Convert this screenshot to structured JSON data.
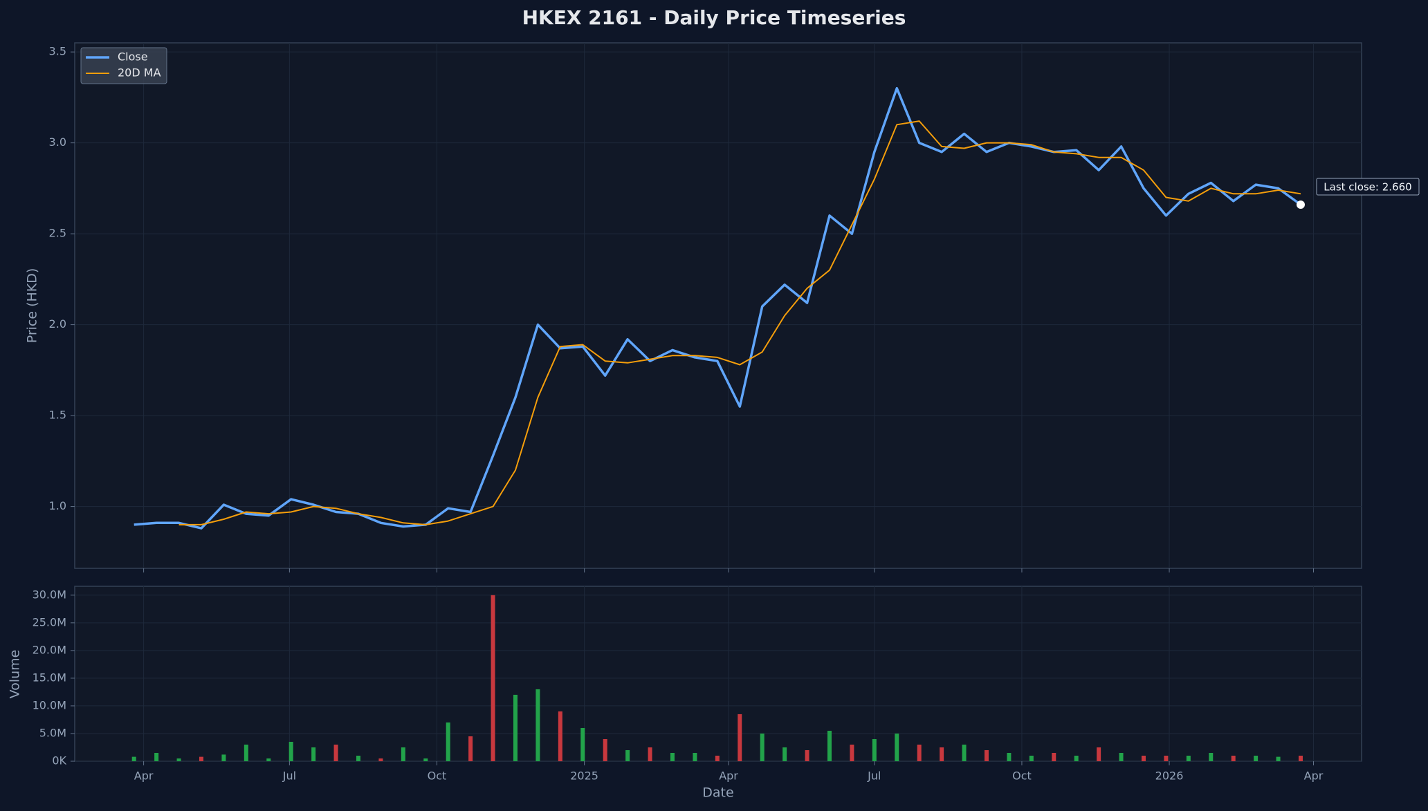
{
  "chart_data": [
    {
      "type": "line",
      "title": "HKEX 2161 - Daily Price Timeseries",
      "ylabel": "Price (HKD)",
      "x": [
        "2024-03-26",
        "2024-04-09",
        "2024-04-23",
        "2024-05-07",
        "2024-05-21",
        "2024-06-04",
        "2024-06-18",
        "2024-07-02",
        "2024-07-16",
        "2024-07-30",
        "2024-08-13",
        "2024-08-27",
        "2024-09-10",
        "2024-09-24",
        "2024-10-08",
        "2024-10-22",
        "2024-11-05",
        "2024-11-19",
        "2024-12-03",
        "2024-12-17",
        "2024-12-31",
        "2025-01-14",
        "2025-01-28",
        "2025-02-11",
        "2025-02-25",
        "2025-03-11",
        "2025-03-25",
        "2025-04-08",
        "2025-04-22",
        "2025-05-06",
        "2025-05-20",
        "2025-06-03",
        "2025-06-17",
        "2025-07-01",
        "2025-07-15",
        "2025-07-29",
        "2025-08-12",
        "2025-08-26",
        "2025-09-09",
        "2025-09-23",
        "2025-10-07",
        "2025-10-21",
        "2025-11-04",
        "2025-11-18",
        "2025-12-02",
        "2025-12-16",
        "2025-12-30",
        "2026-01-13",
        "2026-01-27",
        "2026-02-10",
        "2026-02-24",
        "2026-03-10",
        "2026-03-24"
      ],
      "series": [
        {
          "name": "Close",
          "color": "#60a5fa",
          "values": [
            0.9,
            0.91,
            0.91,
            0.88,
            1.01,
            0.96,
            0.95,
            1.04,
            1.01,
            0.97,
            0.96,
            0.91,
            0.89,
            0.9,
            0.99,
            0.97,
            1.28,
            1.6,
            2.0,
            1.87,
            1.88,
            1.72,
            1.92,
            1.8,
            1.86,
            1.82,
            1.8,
            1.55,
            2.1,
            2.22,
            2.12,
            2.6,
            2.5,
            2.95,
            3.3,
            3.0,
            2.95,
            3.05,
            2.95,
            3.0,
            2.98,
            2.95,
            2.96,
            2.85,
            2.98,
            2.75,
            2.6,
            2.72,
            2.78,
            2.68,
            2.77,
            2.75,
            2.66
          ]
        },
        {
          "name": "20D MA",
          "color": "#f59e0b",
          "values": [
            null,
            null,
            0.9,
            0.9,
            0.93,
            0.97,
            0.96,
            0.97,
            1.0,
            0.99,
            0.96,
            0.94,
            0.91,
            0.9,
            0.92,
            0.96,
            1.0,
            1.2,
            1.6,
            1.88,
            1.89,
            1.8,
            1.79,
            1.81,
            1.83,
            1.83,
            1.82,
            1.78,
            1.85,
            2.05,
            2.2,
            2.3,
            2.55,
            2.8,
            3.1,
            3.12,
            2.98,
            2.97,
            3.0,
            3.0,
            2.99,
            2.95,
            2.94,
            2.92,
            2.92,
            2.85,
            2.7,
            2.68,
            2.75,
            2.72,
            2.72,
            2.74,
            2.72
          ]
        }
      ],
      "annotation": "Last close: 2.660",
      "xlim": [
        "2024-02-18",
        "2026-05-01"
      ],
      "xticks": [
        "2024-04-01",
        "2024-07-01",
        "2024-10-01",
        "2025-01-01",
        "2025-04-01",
        "2025-07-01",
        "2025-10-01",
        "2026-01-01",
        "2026-04-01"
      ],
      "ylim": [
        0.66,
        3.55
      ],
      "yticks": [
        {
          "value": 1,
          "label": "1.0"
        },
        1.5,
        {
          "value": 2,
          "label": "2.0"
        },
        2.5,
        {
          "value": 3,
          "label": "3.0"
        },
        3.5
      ],
      "grid": true,
      "legend": "upper left"
    },
    {
      "type": "bar",
      "xlabel": "Date",
      "ylabel": "Volume",
      "x": [
        "2024-03-26",
        "2024-04-09",
        "2024-04-23",
        "2024-05-07",
        "2024-05-21",
        "2024-06-04",
        "2024-06-18",
        "2024-07-02",
        "2024-07-16",
        "2024-07-30",
        "2024-08-13",
        "2024-08-27",
        "2024-09-10",
        "2024-09-24",
        "2024-10-08",
        "2024-10-22",
        "2024-11-05",
        "2024-11-19",
        "2024-12-03",
        "2024-12-17",
        "2024-12-31",
        "2025-01-14",
        "2025-01-28",
        "2025-02-11",
        "2025-02-25",
        "2025-03-11",
        "2025-03-25",
        "2025-04-08",
        "2025-04-22",
        "2025-05-06",
        "2025-05-20",
        "2025-06-03",
        "2025-06-17",
        "2025-07-01",
        "2025-07-15",
        "2025-07-29",
        "2025-08-12",
        "2025-08-26",
        "2025-09-09",
        "2025-09-23",
        "2025-10-07",
        "2025-10-21",
        "2025-11-04",
        "2025-11-18",
        "2025-12-02",
        "2025-12-16",
        "2025-12-30",
        "2026-01-13",
        "2026-01-27",
        "2026-02-10",
        "2026-02-24",
        "2026-03-10",
        "2026-03-24"
      ],
      "values": [
        800000,
        1500000,
        500000,
        800000,
        1200000,
        3000000,
        500000,
        3500000,
        2500000,
        3000000,
        1000000,
        500000,
        2500000,
        500000,
        7000000,
        4500000,
        30000000,
        12000000,
        13000000,
        9000000,
        6000000,
        4000000,
        2000000,
        2500000,
        1500000,
        1500000,
        1000000,
        8500000,
        5000000,
        2500000,
        2000000,
        5500000,
        3000000,
        4000000,
        5000000,
        3000000,
        2500000,
        3000000,
        2000000,
        1500000,
        1000000,
        1500000,
        1000000,
        2500000,
        1500000,
        1000000,
        1000000,
        1000000,
        1500000,
        1000000,
        1000000,
        800000,
        1000000
      ],
      "colors": [
        "#22a34a",
        "#22a34a",
        "#22a34a",
        "#c8383e",
        "#22a34a",
        "#22a34a",
        "#22a34a",
        "#22a34a",
        "#22a34a",
        "#c8383e",
        "#22a34a",
        "#c8383e",
        "#22a34a",
        "#22a34a",
        "#22a34a",
        "#c8383e",
        "#c8383e",
        "#22a34a",
        "#22a34a",
        "#c8383e",
        "#22a34a",
        "#c8383e",
        "#22a34a",
        "#c8383e",
        "#22a34a",
        "#22a34a",
        "#c8383e",
        "#c8383e",
        "#22a34a",
        "#22a34a",
        "#c8383e",
        "#22a34a",
        "#c8383e",
        "#22a34a",
        "#22a34a",
        "#c8383e",
        "#c8383e",
        "#22a34a",
        "#c8383e",
        "#22a34a",
        "#22a34a",
        "#c8383e",
        "#22a34a",
        "#c8383e",
        "#22a34a",
        "#c8383e",
        "#c8383e",
        "#22a34a",
        "#22a34a",
        "#c8383e",
        "#22a34a",
        "#22a34a",
        "#c8383e"
      ],
      "xlim": [
        "2024-02-18",
        "2026-05-01"
      ],
      "xticks": [
        {
          "value": "2024-04-01",
          "label": "Apr"
        },
        {
          "value": "2024-07-01",
          "label": "Jul"
        },
        {
          "value": "2024-10-01",
          "label": "Oct"
        },
        {
          "value": "2025-01-01",
          "label": "2025"
        },
        {
          "value": "2025-04-01",
          "label": "Apr"
        },
        {
          "value": "2025-07-01",
          "label": "Jul"
        },
        {
          "value": "2025-10-01",
          "label": "Oct"
        },
        {
          "value": "2026-01-01",
          "label": "2026"
        },
        {
          "value": "2026-04-01",
          "label": "Apr"
        }
      ],
      "ylim": [
        0,
        31600000
      ],
      "yticks": [
        {
          "value": 0,
          "label": "0K"
        },
        {
          "value": 5000000,
          "label": "5.0M"
        },
        {
          "value": 10000000,
          "label": "10.0M"
        },
        {
          "value": 15000000,
          "label": "15.0M"
        },
        {
          "value": 20000000,
          "label": "20.0M"
        },
        {
          "value": 25000000,
          "label": "25.0M"
        },
        {
          "value": 30000000,
          "label": "30.0M"
        }
      ],
      "grid": true
    }
  ]
}
